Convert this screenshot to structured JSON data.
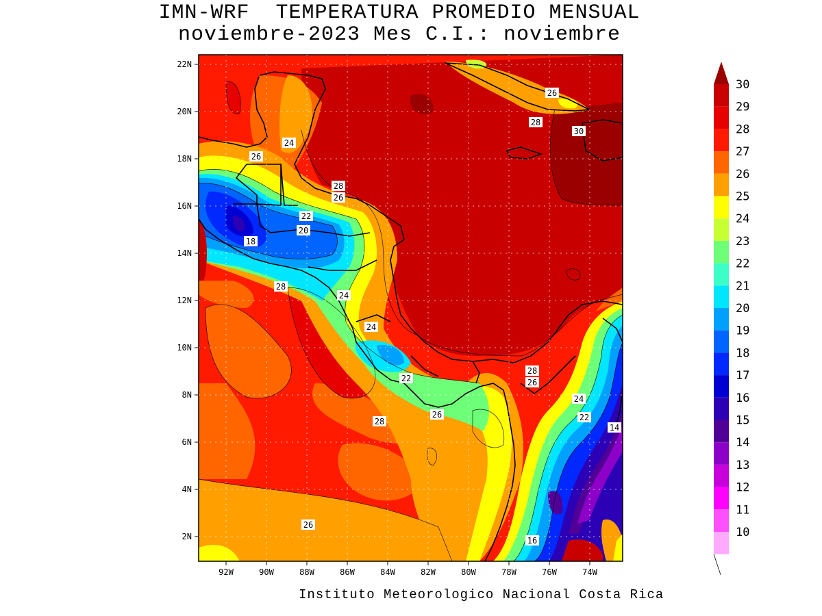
{
  "title": {
    "line1": "IMN-WRF  TEMPERATURA PROMEDIO MENSUAL",
    "line2": "noviembre-2023 Mes C.I.: noviembre"
  },
  "footer": "Instituto Meteorologico Nacional Costa Rica",
  "axes": {
    "lat_ticks": [
      "22N",
      "20N",
      "18N",
      "16N",
      "14N",
      "12N",
      "10N",
      "8N",
      "6N",
      "4N",
      "2N"
    ],
    "lon_ticks": [
      "92W",
      "90W",
      "88W",
      "86W",
      "84W",
      "82W",
      "80W",
      "78W",
      "76W",
      "74W"
    ]
  },
  "colorbar": {
    "labels": [
      "30",
      "29",
      "28",
      "27",
      "26",
      "25",
      "24",
      "23",
      "22",
      "21",
      "20",
      "19",
      "18",
      "17",
      "16",
      "15",
      "14",
      "13",
      "12",
      "11",
      "10"
    ],
    "colors": [
      "#9a0000",
      "#c80000",
      "#e60000",
      "#ff1a00",
      "#ff6600",
      "#ffa000",
      "#ffff00",
      "#c8ff32",
      "#6eff78",
      "#3cffc8",
      "#00e6ff",
      "#00a0ff",
      "#0064ff",
      "#0028ff",
      "#0000d2",
      "#2c00b4",
      "#500096",
      "#8c00c8",
      "#c800dc",
      "#ff00ff",
      "#ff50ff",
      "#ffaaff"
    ]
  },
  "contour_labels": [
    "26",
    "24",
    "28",
    "26",
    "22",
    "20",
    "18",
    "28",
    "24",
    "24",
    "22",
    "26",
    "28",
    "28",
    "26",
    "24",
    "22",
    "14",
    "16",
    "26",
    "26",
    "28",
    "30"
  ]
}
